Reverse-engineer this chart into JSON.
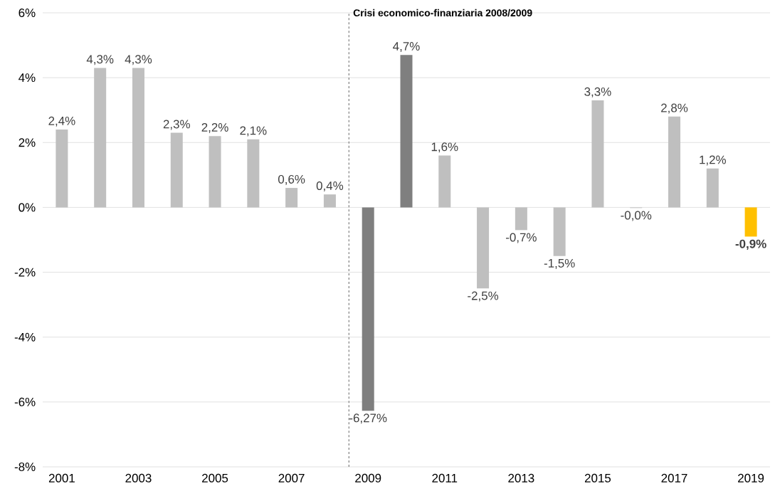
{
  "chart_data": {
    "type": "bar",
    "x": [
      2001,
      2002,
      2003,
      2004,
      2005,
      2006,
      2007,
      2008,
      2009,
      2010,
      2011,
      2012,
      2013,
      2014,
      2015,
      2016,
      2017,
      2018,
      2019
    ],
    "values": [
      2.4,
      4.3,
      4.3,
      2.3,
      2.2,
      2.1,
      0.6,
      0.4,
      -6.27,
      4.7,
      1.6,
      -2.5,
      -0.7,
      -1.5,
      3.3,
      -0.02,
      2.8,
      1.2,
      -0.9
    ],
    "value_labels": [
      "2,4%",
      "4,3%",
      "4,3%",
      "2,3%",
      "2,2%",
      "2,1%",
      "0,6%",
      "0,4%",
      "-6,27%",
      "4,7%",
      "1,6%",
      "-2,5%",
      "-0,7%",
      "-1,5%",
      "3,3%",
      "-0,0%",
      "2,8%",
      "1,2%",
      "**-0,9%**"
    ],
    "colors": [
      "#bfbfbf",
      "#bfbfbf",
      "#bfbfbf",
      "#bfbfbf",
      "#bfbfbf",
      "#bfbfbf",
      "#bfbfbf",
      "#bfbfbf",
      "#7f7f7f",
      "#7f7f7f",
      "#bfbfbf",
      "#bfbfbf",
      "#bfbfbf",
      "#bfbfbf",
      "#bfbfbf",
      "#bfbfbf",
      "#bfbfbf",
      "#bfbfbf",
      "#ffc000"
    ],
    "xlim": [
      2000.5,
      2019.5
    ],
    "xticks": [
      2001,
      2003,
      2005,
      2007,
      2009,
      2011,
      2013,
      2015,
      2017,
      2019
    ],
    "ylim": [
      -8,
      6
    ],
    "yticks": [
      {
        "value": -8,
        "label": "-8%"
      },
      {
        "value": -6,
        "label": "-6%"
      },
      {
        "value": -4,
        "label": "-4%"
      },
      {
        "value": -2,
        "label": "-2%"
      },
      {
        "value": 0,
        "label": "0%"
      },
      {
        "value": 2,
        "label": "2%"
      },
      {
        "value": 4,
        "label": "4%"
      },
      {
        "value": 6,
        "label": "6%"
      }
    ],
    "grid": "y",
    "ref_lines": [
      {
        "axis": "x",
        "value": 2008.5,
        "label": "Crisi economico-finanziaria 2008/2009",
        "color": "#7f7f7f",
        "line_style": "dashed"
      }
    ]
  }
}
